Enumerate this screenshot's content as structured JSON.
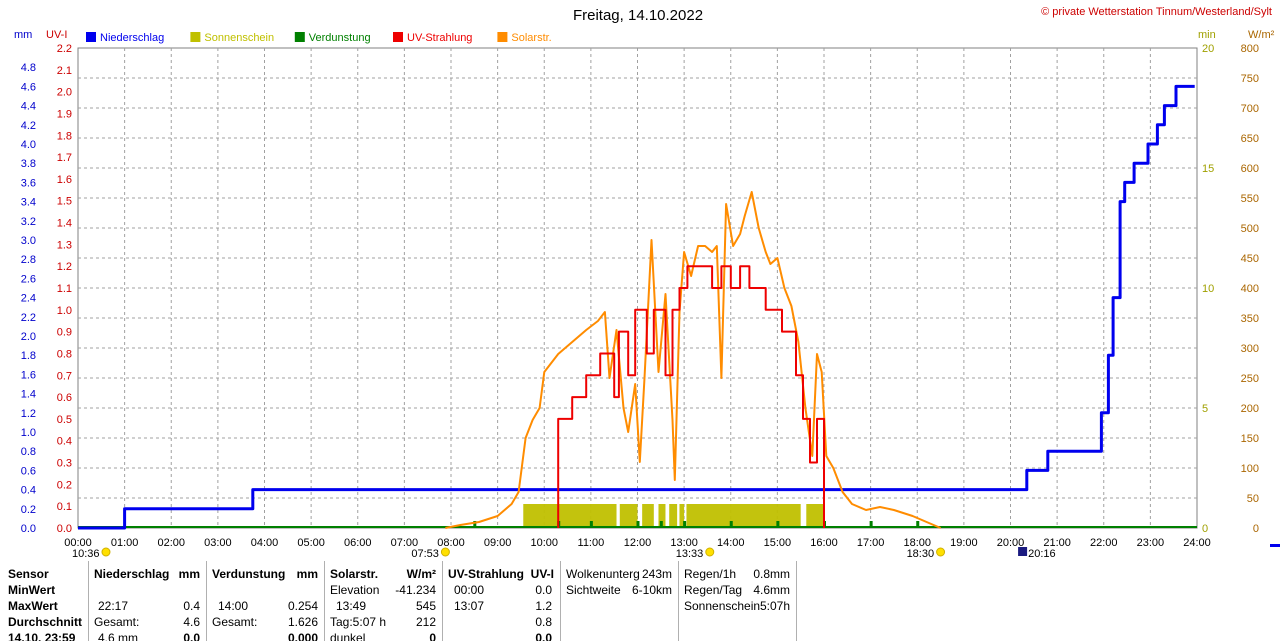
{
  "header": {
    "title": "Freitag, 14.10.2022",
    "copyright": "© private Wetterstation Tinnum/Westerland/Sylt"
  },
  "legend": [
    {
      "label": "Niederschlag",
      "color": "#0000ee"
    },
    {
      "label": "Sonnenschein",
      "color": "#c0c000"
    },
    {
      "label": "Verdunstung",
      "color": "#008000"
    },
    {
      "label": "UV-Strahlung",
      "color": "#ee0000"
    },
    {
      "label": "Solarstr.",
      "color": "#ff8c00"
    }
  ],
  "axis_units": {
    "mm": "mm",
    "uv": "UV-I",
    "min": "min",
    "wm2": "W/m²"
  },
  "time_markers": [
    {
      "label": "10:36",
      "x": 0.6,
      "icon": "sun-icon"
    },
    {
      "label": "07:53",
      "x": 7.88,
      "icon": "sun-icon"
    },
    {
      "label": "13:33",
      "x": 13.55,
      "icon": "sun-icon"
    },
    {
      "label": "18:30",
      "x": 18.5,
      "icon": "sun-icon"
    },
    {
      "label": "20:16",
      "x": 20.27,
      "icon": "moon-icon"
    }
  ],
  "chart_data": {
    "type": "line",
    "x_unit": "hour of day",
    "xlim": [
      0,
      24
    ],
    "x_ticks": [
      "00:00",
      "01:00",
      "02:00",
      "03:00",
      "04:00",
      "05:00",
      "06:00",
      "07:00",
      "08:00",
      "09:00",
      "10:00",
      "11:00",
      "12:00",
      "13:00",
      "14:00",
      "15:00",
      "16:00",
      "17:00",
      "18:00",
      "19:00",
      "20:00",
      "21:00",
      "22:00",
      "23:00",
      "24:00"
    ],
    "axes": {
      "mm": {
        "label": "mm",
        "range": [
          0,
          5
        ],
        "ticks": [
          "0.0",
          "0.2",
          "0.4",
          "0.6",
          "0.8",
          "1.0",
          "1.2",
          "1.4",
          "1.6",
          "1.8",
          "2.0",
          "2.2",
          "2.4",
          "2.6",
          "2.8",
          "3.0",
          "3.2",
          "3.4",
          "3.6",
          "3.8",
          "4.0",
          "4.2",
          "4.4",
          "4.6",
          "4.8"
        ],
        "color": "#0000cc"
      },
      "uv": {
        "label": "UV-I",
        "range": [
          0,
          2.2
        ],
        "ticks": [
          "0.0",
          "0.1",
          "0.2",
          "0.3",
          "0.4",
          "0.5",
          "0.6",
          "0.7",
          "0.8",
          "0.9",
          "1.0",
          "1.1",
          "1.2",
          "1.3",
          "1.4",
          "1.5",
          "1.6",
          "1.7",
          "1.8",
          "1.9",
          "2.0",
          "2.1",
          "2.2"
        ],
        "color": "#cc0000"
      },
      "min": {
        "label": "min",
        "range": [
          0,
          20
        ],
        "ticks": [
          "0",
          "5",
          "10",
          "15",
          "20"
        ],
        "color": "#a0a000"
      },
      "wm2": {
        "label": "W/m²",
        "range": [
          0,
          800
        ],
        "ticks": [
          "0",
          "50",
          "100",
          "150",
          "200",
          "250",
          "300",
          "350",
          "400",
          "450",
          "500",
          "550",
          "600",
          "650",
          "700",
          "750",
          "800"
        ],
        "color": "#aa6600"
      }
    },
    "series": [
      {
        "name": "Niederschlag",
        "axis": "mm",
        "step": true,
        "color": "#0000ee",
        "points": [
          [
            0,
            0
          ],
          [
            1.0,
            0
          ],
          [
            1.0,
            0.2
          ],
          [
            3.75,
            0.2
          ],
          [
            3.75,
            0.4
          ],
          [
            20.35,
            0.4
          ],
          [
            20.35,
            0.6
          ],
          [
            20.8,
            0.6
          ],
          [
            20.8,
            0.8
          ],
          [
            21.95,
            0.8
          ],
          [
            21.95,
            1.2
          ],
          [
            22.1,
            1.2
          ],
          [
            22.1,
            1.8
          ],
          [
            22.2,
            1.8
          ],
          [
            22.2,
            2.4
          ],
          [
            22.35,
            2.4
          ],
          [
            22.35,
            3.4
          ],
          [
            22.45,
            3.4
          ],
          [
            22.45,
            3.6
          ],
          [
            22.65,
            3.6
          ],
          [
            22.65,
            3.8
          ],
          [
            22.95,
            3.8
          ],
          [
            22.95,
            4.0
          ],
          [
            23.15,
            4.0
          ],
          [
            23.15,
            4.2
          ],
          [
            23.3,
            4.2
          ],
          [
            23.3,
            4.4
          ],
          [
            23.55,
            4.4
          ],
          [
            23.55,
            4.6
          ],
          [
            23.95,
            4.6
          ]
        ]
      },
      {
        "name": "Solarstr.",
        "axis": "wm2",
        "color": "#ff8c00",
        "points": [
          [
            7.88,
            0
          ],
          [
            8.2,
            5
          ],
          [
            8.6,
            10
          ],
          [
            9.0,
            20
          ],
          [
            9.3,
            40
          ],
          [
            9.45,
            60
          ],
          [
            9.6,
            150
          ],
          [
            9.75,
            180
          ],
          [
            9.9,
            200
          ],
          [
            10.0,
            260
          ],
          [
            10.3,
            290
          ],
          [
            10.6,
            310
          ],
          [
            10.9,
            330
          ],
          [
            11.15,
            345
          ],
          [
            11.3,
            360
          ],
          [
            11.4,
            250
          ],
          [
            11.55,
            330
          ],
          [
            11.7,
            200
          ],
          [
            11.8,
            160
          ],
          [
            11.95,
            240
          ],
          [
            12.05,
            110
          ],
          [
            12.15,
            250
          ],
          [
            12.3,
            480
          ],
          [
            12.45,
            260
          ],
          [
            12.6,
            390
          ],
          [
            12.75,
            180
          ],
          [
            12.8,
            80
          ],
          [
            12.9,
            360
          ],
          [
            13.0,
            460
          ],
          [
            13.15,
            420
          ],
          [
            13.3,
            470
          ],
          [
            13.45,
            470
          ],
          [
            13.6,
            460
          ],
          [
            13.7,
            470
          ],
          [
            13.8,
            250
          ],
          [
            13.9,
            540
          ],
          [
            14.05,
            470
          ],
          [
            14.2,
            490
          ],
          [
            14.3,
            520
          ],
          [
            14.45,
            560
          ],
          [
            14.6,
            500
          ],
          [
            14.75,
            460
          ],
          [
            14.85,
            440
          ],
          [
            15.0,
            450
          ],
          [
            15.15,
            400
          ],
          [
            15.3,
            370
          ],
          [
            15.45,
            310
          ],
          [
            15.6,
            200
          ],
          [
            15.75,
            120
          ],
          [
            15.85,
            290
          ],
          [
            15.95,
            260
          ],
          [
            16.05,
            120
          ],
          [
            16.2,
            100
          ],
          [
            16.4,
            60
          ],
          [
            16.6,
            40
          ],
          [
            16.9,
            30
          ],
          [
            17.2,
            35
          ],
          [
            17.5,
            30
          ],
          [
            17.9,
            20
          ],
          [
            18.2,
            10
          ],
          [
            18.5,
            0
          ]
        ]
      },
      {
        "name": "UV-Strahlung",
        "axis": "uv",
        "step": true,
        "color": "#ee0000",
        "points": [
          [
            10.3,
            0
          ],
          [
            10.3,
            0.5
          ],
          [
            10.6,
            0.5
          ],
          [
            10.6,
            0.6
          ],
          [
            10.9,
            0.6
          ],
          [
            10.9,
            0.7
          ],
          [
            11.2,
            0.7
          ],
          [
            11.2,
            0.8
          ],
          [
            11.5,
            0.8
          ],
          [
            11.5,
            0.6
          ],
          [
            11.6,
            0.6
          ],
          [
            11.6,
            0.9
          ],
          [
            11.8,
            0.9
          ],
          [
            11.8,
            0.7
          ],
          [
            11.95,
            0.7
          ],
          [
            11.95,
            1.0
          ],
          [
            12.2,
            1.0
          ],
          [
            12.2,
            0.8
          ],
          [
            12.35,
            0.8
          ],
          [
            12.35,
            1.0
          ],
          [
            12.6,
            1.0
          ],
          [
            12.6,
            0.7
          ],
          [
            12.75,
            0.7
          ],
          [
            12.75,
            1.0
          ],
          [
            12.9,
            1.0
          ],
          [
            12.9,
            1.1
          ],
          [
            13.07,
            1.1
          ],
          [
            13.07,
            1.2
          ],
          [
            13.6,
            1.2
          ],
          [
            13.6,
            1.1
          ],
          [
            13.8,
            1.1
          ],
          [
            13.8,
            1.2
          ],
          [
            14.0,
            1.2
          ],
          [
            14.0,
            1.1
          ],
          [
            14.2,
            1.1
          ],
          [
            14.2,
            1.2
          ],
          [
            14.4,
            1.2
          ],
          [
            14.4,
            1.1
          ],
          [
            14.75,
            1.1
          ],
          [
            14.75,
            1.0
          ],
          [
            15.1,
            1.0
          ],
          [
            15.1,
            0.9
          ],
          [
            15.4,
            0.9
          ],
          [
            15.4,
            0.7
          ],
          [
            15.55,
            0.7
          ],
          [
            15.55,
            0.5
          ],
          [
            15.7,
            0.5
          ],
          [
            15.7,
            0.3
          ],
          [
            15.85,
            0.3
          ],
          [
            15.85,
            0.5
          ],
          [
            16.0,
            0.5
          ],
          [
            16.0,
            0
          ]
        ]
      },
      {
        "name": "Sonnenschein",
        "axis": "min",
        "type": "bar",
        "color": "#c0c000",
        "intervals": [
          [
            9.55,
            11.55
          ],
          [
            11.62,
            12.0
          ],
          [
            12.1,
            12.35
          ],
          [
            12.45,
            12.6
          ],
          [
            12.68,
            12.85
          ],
          [
            12.9,
            13.0
          ],
          [
            13.05,
            15.5
          ],
          [
            15.62,
            16.0
          ]
        ],
        "value": 1
      }
    ]
  },
  "stats": {
    "col1": {
      "rows": [
        "Sensor",
        "MinWert",
        "MaxWert",
        "Durchschnitt",
        "14.10. 23:59"
      ]
    },
    "col2": {
      "header": "Niederschlag",
      "unit": "mm",
      "rows": [
        [
          "",
          ""
        ],
        [
          "22:17",
          "0.4"
        ],
        [
          "Gesamt:",
          "4.6"
        ],
        [
          "4.6 mm",
          "0.0"
        ]
      ]
    },
    "col3": {
      "header": "Verdunstung",
      "unit": "mm",
      "rows": [
        [
          "",
          ""
        ],
        [
          "14:00",
          "0.254"
        ],
        [
          "Gesamt:",
          "1.626"
        ],
        [
          "",
          "0.000"
        ]
      ]
    },
    "col4": {
      "header": "Solarstr.",
      "unit": "W/m²",
      "rows": [
        [
          "Elevation",
          "-41.234"
        ],
        [
          "13:49",
          "545"
        ],
        [
          "Tag:5:07 h",
          "212"
        ],
        [
          "dunkel",
          "0"
        ]
      ]
    },
    "col5": {
      "header": "UV-Strahlung",
      "unit": "UV-I",
      "rows": [
        [
          "00:00",
          "0.0"
        ],
        [
          "13:07",
          "1.2"
        ],
        [
          "",
          "0.8"
        ],
        [
          "",
          "0.0"
        ]
      ]
    },
    "col6": {
      "rows": [
        [
          "Wolkenunterg",
          "243m"
        ],
        [
          "Sichtweite",
          "6-10km"
        ]
      ]
    },
    "col7": {
      "rows": [
        [
          "Regen/1h",
          "0.8mm"
        ],
        [
          "Regen/Tag",
          "4.6mm"
        ],
        [
          "Sonnenschein",
          "5:07h"
        ]
      ]
    }
  }
}
